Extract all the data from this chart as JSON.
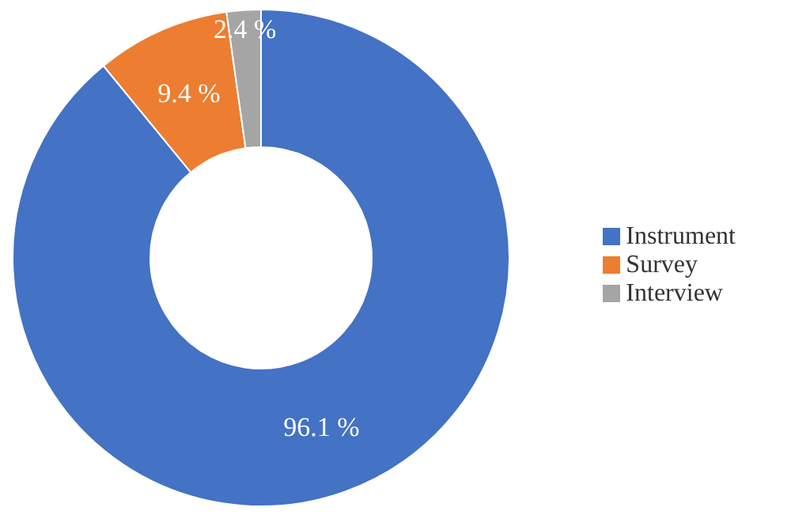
{
  "chart_data": {
    "type": "donut",
    "categories": [
      "Instrument",
      "Survey",
      "Interview"
    ],
    "values": [
      96.1,
      9.4,
      2.4
    ],
    "colors": [
      "#4472c4",
      "#ed7d31",
      "#a5a5a5"
    ],
    "value_labels": [
      "96.1 %",
      "9.4 %",
      "2.4 %"
    ],
    "legend": "right"
  }
}
